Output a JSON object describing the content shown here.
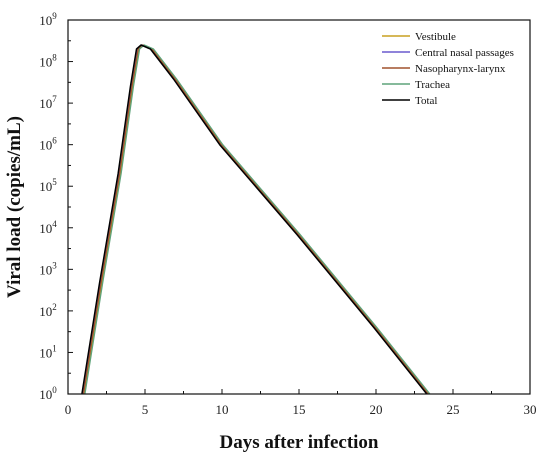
{
  "chart_data": {
    "type": "line",
    "xlabel": "Days after infection",
    "ylabel": "Viral load (copies/mL)",
    "xlim": [
      0,
      30
    ],
    "ylim": [
      1,
      1000000000
    ],
    "y_scale": "log",
    "x_ticks": [
      0,
      5,
      10,
      15,
      20,
      25,
      30
    ],
    "x_tick_labels": [
      "0",
      "5",
      "10",
      "15",
      "20",
      "25",
      "30"
    ],
    "y_ticks": [
      1,
      10,
      100,
      1000,
      10000,
      100000,
      1000000,
      10000000,
      100000000,
      1000000000
    ],
    "y_tick_labels": [
      {
        "base": "10",
        "exp": "0"
      },
      {
        "base": "10",
        "exp": "1"
      },
      {
        "base": "10",
        "exp": "2"
      },
      {
        "base": "10",
        "exp": "3"
      },
      {
        "base": "10",
        "exp": "4"
      },
      {
        "base": "10",
        "exp": "5"
      },
      {
        "base": "10",
        "exp": "6"
      },
      {
        "base": "10",
        "exp": "7"
      },
      {
        "base": "10",
        "exp": "8"
      },
      {
        "base": "10",
        "exp": "9"
      }
    ],
    "grid": false,
    "legend_position": "top-right",
    "series": [
      {
        "name": "Vestibule",
        "color": "#c8a020",
        "x": [
          1.05,
          2.2,
          3.4,
          4.2,
          4.6,
          4.9,
          5.5,
          7.0,
          10.0,
          15.0,
          20.0,
          23.45
        ],
        "y": [
          1,
          480,
          200000,
          25000000,
          200000000,
          250000000,
          200000000,
          38000000,
          1000000,
          7000,
          40,
          1
        ]
      },
      {
        "name": "Central nasal passages",
        "color": "#6a5acd",
        "x": [
          0.95,
          2.1,
          3.3,
          4.1,
          4.5,
          4.8,
          5.4,
          6.9,
          9.9,
          14.9,
          19.9,
          23.35
        ],
        "y": [
          1,
          480,
          200000,
          25000000,
          200000000,
          250000000,
          200000000,
          38000000,
          1000000,
          7000,
          40,
          1
        ]
      },
      {
        "name": "Nasopharynx-larynx",
        "color": "#a0522d",
        "x": [
          1.0,
          2.15,
          3.35,
          4.15,
          4.55,
          4.85,
          5.45,
          6.95,
          9.95,
          14.95,
          19.95,
          23.4
        ],
        "y": [
          1,
          480,
          200000,
          25000000,
          200000000,
          250000000,
          200000000,
          38000000,
          1000000,
          7000,
          40,
          1
        ]
      },
      {
        "name": "Trachea",
        "color": "#5fa37a",
        "x": [
          1.1,
          2.25,
          3.45,
          4.25,
          4.65,
          4.95,
          5.55,
          7.05,
          10.05,
          15.05,
          20.05,
          23.5
        ],
        "y": [
          1,
          480,
          200000,
          25000000,
          200000000,
          250000000,
          200000000,
          38000000,
          1000000,
          7000,
          40,
          1
        ]
      },
      {
        "name": "Total",
        "color": "#000000",
        "x": [
          0.9,
          2.05,
          3.25,
          4.05,
          4.45,
          4.75,
          5.35,
          6.85,
          9.85,
          14.85,
          19.85,
          23.3
        ],
        "y": [
          1,
          480,
          200000,
          25000000,
          200000000,
          250000000,
          200000000,
          38000000,
          1000000,
          7000,
          40,
          1
        ]
      }
    ]
  }
}
